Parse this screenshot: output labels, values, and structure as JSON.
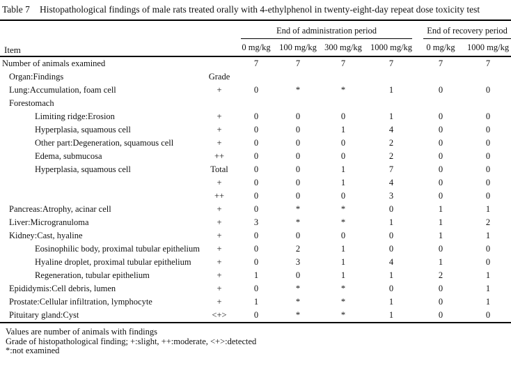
{
  "title": {
    "label": "Table 7",
    "text": "Histopathological findings of male rats treated orally with 4-ethylphenol in twenty-eight-day repeat dose toxicity test"
  },
  "table": {
    "item_header": "Item",
    "groups": [
      {
        "label": "End of administration period",
        "columns": [
          "0 mg/kg",
          "100 mg/kg",
          "300 mg/kg",
          "1000 mg/kg"
        ]
      },
      {
        "label": "End of recovery period",
        "columns": [
          "0 mg/kg",
          "1000 mg/kg"
        ]
      }
    ],
    "rows": [
      {
        "item": "Number of animals examined",
        "indent": 0,
        "grade": "",
        "values": [
          "7",
          "7",
          "7",
          "7",
          "7",
          "7"
        ]
      },
      {
        "item": "Organ:Findings",
        "indent": 1,
        "grade": "Grade",
        "values": [
          "",
          "",
          "",
          "",
          "",
          ""
        ]
      },
      {
        "item": "Lung:Accumulation, foam cell",
        "indent": 1,
        "grade": "+",
        "values": [
          "0",
          "*",
          "*",
          "1",
          "0",
          "0"
        ]
      },
      {
        "item": "Forestomach",
        "indent": 1,
        "grade": "",
        "values": [
          "",
          "",
          "",
          "",
          "",
          ""
        ]
      },
      {
        "item": "Limiting ridge:Erosion",
        "indent": 2,
        "grade": "+",
        "values": [
          "0",
          "0",
          "0",
          "1",
          "0",
          "0"
        ]
      },
      {
        "item": "Hyperplasia, squamous cell",
        "indent": 2,
        "grade": "+",
        "values": [
          "0",
          "0",
          "1",
          "4",
          "0",
          "0"
        ]
      },
      {
        "item": "Other part:Degeneration, squamous cell",
        "indent": 2,
        "grade": "+",
        "values": [
          "0",
          "0",
          "0",
          "2",
          "0",
          "0"
        ]
      },
      {
        "item": "Edema, submucosa",
        "indent": 2,
        "grade": "++",
        "values": [
          "0",
          "0",
          "0",
          "2",
          "0",
          "0"
        ]
      },
      {
        "item": "Hyperplasia, squamous cell",
        "indent": 2,
        "grade": "Total",
        "values": [
          "0",
          "0",
          "1",
          "7",
          "0",
          "0"
        ]
      },
      {
        "item": "",
        "indent": 2,
        "grade": "+",
        "values": [
          "0",
          "0",
          "1",
          "4",
          "0",
          "0"
        ]
      },
      {
        "item": "",
        "indent": 2,
        "grade": "++",
        "values": [
          "0",
          "0",
          "0",
          "3",
          "0",
          "0"
        ]
      },
      {
        "item": "Pancreas:Atrophy, acinar cell",
        "indent": 1,
        "grade": "+",
        "values": [
          "0",
          "*",
          "*",
          "0",
          "1",
          "1"
        ]
      },
      {
        "item": "Liver:Microgranuloma",
        "indent": 1,
        "grade": "+",
        "values": [
          "3",
          "*",
          "*",
          "1",
          "1",
          "2"
        ]
      },
      {
        "item": "Kidney:Cast, hyaline",
        "indent": 1,
        "grade": "+",
        "values": [
          "0",
          "0",
          "0",
          "0",
          "1",
          "1"
        ]
      },
      {
        "item": "Eosinophilic body, proximal tubular epithelium",
        "indent": 2,
        "grade": "+",
        "values": [
          "0",
          "2",
          "1",
          "0",
          "0",
          "0"
        ]
      },
      {
        "item": "Hyaline droplet, proximal tubular epithelium",
        "indent": 2,
        "grade": "+",
        "values": [
          "0",
          "3",
          "1",
          "4",
          "1",
          "0"
        ]
      },
      {
        "item": "Regeneration, tubular epithelium",
        "indent": 2,
        "grade": "+",
        "values": [
          "1",
          "0",
          "1",
          "1",
          "2",
          "1"
        ]
      },
      {
        "item": "Epididymis:Cell debris, lumen",
        "indent": 1,
        "grade": "+",
        "values": [
          "0",
          "*",
          "*",
          "0",
          "0",
          "1"
        ]
      },
      {
        "item": "Prostate:Cellular infiltration, lymphocyte",
        "indent": 1,
        "grade": "+",
        "values": [
          "1",
          "*",
          "*",
          "1",
          "0",
          "1"
        ]
      },
      {
        "item": "Pituitary gland:Cyst",
        "indent": 1,
        "grade": "<+>",
        "values": [
          "0",
          "*",
          "*",
          "1",
          "0",
          "0"
        ]
      }
    ]
  },
  "footnotes": [
    "Values are number of animals with findings",
    "Grade of histopathological finding; +:slight, ++:moderate, <+>:detected",
    "*:not examined"
  ]
}
